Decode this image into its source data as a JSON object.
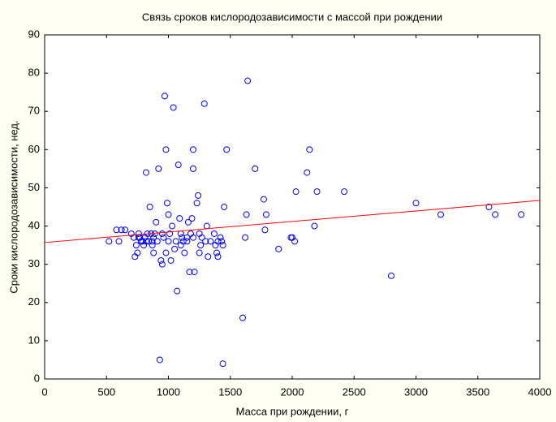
{
  "chart_data": {
    "type": "scatter",
    "title": "Связь сроков кислородозависимости с массой при рождении",
    "x_label": "Масса при рождении, г",
    "y_label": "Сроки кислородозависимости, нед.",
    "x": [
      520,
      580,
      600,
      620,
      650,
      700,
      720,
      730,
      740,
      750,
      760,
      770,
      780,
      790,
      800,
      810,
      820,
      830,
      840,
      850,
      860,
      870,
      880,
      890,
      900,
      910,
      920,
      930,
      940,
      950,
      960,
      970,
      980,
      990,
      1000,
      1010,
      1020,
      1030,
      1040,
      1060,
      1070,
      1080,
      1090,
      1100,
      1110,
      1120,
      1130,
      1150,
      1160,
      1170,
      1180,
      1190,
      1200,
      1200,
      1210,
      1230,
      1240,
      1250,
      1260,
      1270,
      1290,
      1300,
      1310,
      1320,
      1340,
      1370,
      1380,
      1390,
      1400,
      1420,
      1430,
      1440,
      1450,
      1470,
      1600,
      1620,
      1630,
      1640,
      1700,
      1770,
      1780,
      1790,
      1890,
      1990,
      2000,
      2020,
      2030,
      2120,
      2140,
      2180,
      2200,
      2420,
      2800,
      3000,
      3200,
      3590,
      3640,
      3850,
      1000,
      950,
      1100,
      1150,
      1050,
      870,
      980,
      1200,
      1250,
      1400,
      1440,
      760,
      820,
      880
    ],
    "values": [
      36,
      39,
      36,
      39,
      39,
      38,
      37,
      32,
      35,
      33,
      38,
      37,
      36,
      36,
      35,
      37,
      54,
      38,
      36,
      45,
      38,
      35,
      37,
      38,
      41,
      36,
      55,
      5,
      31,
      38,
      37,
      74,
      60,
      46,
      43,
      38,
      31,
      40,
      71,
      36,
      23,
      56,
      42,
      38,
      37,
      36,
      33,
      37,
      41,
      28,
      38,
      42,
      60,
      55,
      28,
      46,
      48,
      38,
      35,
      37,
      72,
      36,
      40,
      32,
      36,
      38,
      35,
      33,
      32,
      37,
      36,
      4,
      45,
      60,
      16,
      37,
      43,
      78,
      55,
      47,
      39,
      43,
      34,
      37,
      37,
      36,
      49,
      54,
      60,
      40,
      49,
      49,
      27,
      46,
      43,
      45,
      43,
      43,
      36,
      30,
      35,
      36,
      34,
      36,
      33,
      37,
      33,
      36,
      35,
      37,
      36,
      33
    ],
    "color": "#0000ff",
    "trend_line": {
      "x": [
        0,
        4000
      ],
      "y": [
        35.7,
        46.7
      ],
      "color": "#ff0000"
    },
    "xlim": [
      0,
      4000
    ],
    "xticks": [
      0,
      500,
      1000,
      1500,
      2000,
      2500,
      3000,
      3500,
      4000
    ],
    "ylim": [
      0,
      90
    ],
    "yticks": [
      0,
      10,
      20,
      30,
      40,
      50,
      60,
      70,
      80,
      90
    ]
  }
}
